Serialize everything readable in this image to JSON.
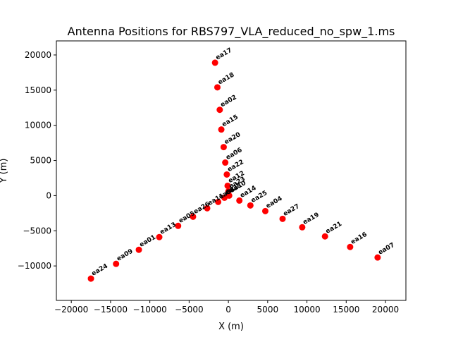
{
  "chart_data": {
    "type": "scatter",
    "title": "Antenna Positions for RBS797_VLA_reduced_no_spw_1.ms",
    "xlabel": "X (m)",
    "ylabel": "Y (m)",
    "xlim": [
      -21900,
      22600
    ],
    "ylim": [
      -14900,
      22000
    ],
    "xticks": [
      -20000,
      -15000,
      -10000,
      -5000,
      0,
      5000,
      10000,
      15000,
      20000
    ],
    "yticks": [
      -10000,
      -5000,
      0,
      5000,
      10000,
      15000,
      20000
    ],
    "grid": false,
    "marker_color": "#ff0000",
    "points": [
      {
        "label": "ea17",
        "x": -1700,
        "y": 18900
      },
      {
        "label": "ea18",
        "x": -1400,
        "y": 15400
      },
      {
        "label": "ea02",
        "x": -1100,
        "y": 12200
      },
      {
        "label": "ea15",
        "x": -900,
        "y": 9400
      },
      {
        "label": "ea20",
        "x": -600,
        "y": 6900
      },
      {
        "label": "ea06",
        "x": -400,
        "y": 4700
      },
      {
        "label": "ea22",
        "x": -200,
        "y": 3000
      },
      {
        "label": "ea12",
        "x": -100,
        "y": 1400
      },
      {
        "label": "ea23",
        "x": 0,
        "y": 600
      },
      {
        "label": "ea10",
        "x": 100,
        "y": 0
      },
      {
        "label": "ea14",
        "x": 1400,
        "y": -700
      },
      {
        "label": "ea25",
        "x": 2800,
        "y": -1400
      },
      {
        "label": "ea04",
        "x": 4700,
        "y": -2200
      },
      {
        "label": "ea27",
        "x": 6900,
        "y": -3300
      },
      {
        "label": "ea19",
        "x": 9400,
        "y": -4500
      },
      {
        "label": "ea21",
        "x": 12300,
        "y": -5800
      },
      {
        "label": "ea16",
        "x": 15500,
        "y": -7300
      },
      {
        "label": "ea07",
        "x": 19000,
        "y": -8800
      },
      {
        "label": "ea28",
        "x": -500,
        "y": -300
      },
      {
        "label": "ea03",
        "x": -1300,
        "y": -900
      },
      {
        "label": "ea11",
        "x": -2700,
        "y": -1800
      },
      {
        "label": "ea26",
        "x": -4500,
        "y": -3000
      },
      {
        "label": "ea05",
        "x": -6400,
        "y": -4300
      },
      {
        "label": "ea13",
        "x": -8800,
        "y": -5900
      },
      {
        "label": "ea01",
        "x": -11400,
        "y": -7700
      },
      {
        "label": "ea09",
        "x": -14300,
        "y": -9700
      },
      {
        "label": "ea24",
        "x": -17500,
        "y": -11800
      }
    ]
  }
}
